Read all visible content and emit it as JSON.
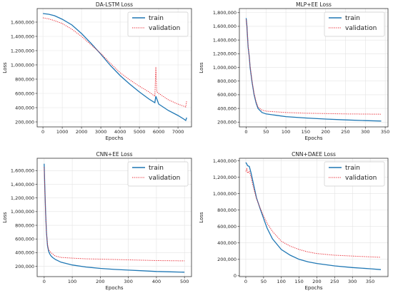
{
  "chart_data": [
    {
      "type": "line",
      "title": "DA-LSTM Loss",
      "xlabel": "Epochs",
      "ylabel": "Loss",
      "xlim": [
        -300,
        7700
      ],
      "ylim": [
        130000,
        1790000
      ],
      "xticks": [
        0,
        1000,
        2000,
        3000,
        4000,
        5000,
        6000,
        7000
      ],
      "xtick_labels": [
        "0",
        "1000",
        "2000",
        "3000",
        "4000",
        "5000",
        "6000",
        "7000"
      ],
      "yticks": [
        200000,
        400000,
        600000,
        800000,
        1000000,
        1200000,
        1400000,
        1600000
      ],
      "ytick_labels": [
        "200,000",
        "400,000",
        "600,000",
        "800,000",
        "1,000,000",
        "1,200,000",
        "1,400,000",
        "1,600,000"
      ],
      "legend": "top-right",
      "grid": true,
      "series": [
        {
          "name": "train",
          "color": "#1f77b4",
          "style": "solid",
          "x": [
            0,
            300,
            600,
            1000,
            1500,
            2000,
            2500,
            3000,
            3500,
            4000,
            4500,
            5000,
            5500,
            5800,
            5850,
            6000,
            6500,
            7000,
            7300,
            7400,
            7450
          ],
          "y": [
            1720000,
            1710000,
            1690000,
            1640000,
            1560000,
            1440000,
            1300000,
            1150000,
            990000,
            850000,
            730000,
            620000,
            520000,
            470000,
            560000,
            450000,
            360000,
            290000,
            240000,
            220000,
            260000
          ]
        },
        {
          "name": "validation",
          "color": "#e8202a",
          "style": "dotted",
          "x": [
            0,
            300,
            600,
            1000,
            1500,
            2000,
            2500,
            3000,
            3500,
            4000,
            4500,
            5000,
            5500,
            5800,
            5850,
            5900,
            6000,
            6500,
            7000,
            7300,
            7400,
            7450
          ],
          "y": [
            1660000,
            1645000,
            1620000,
            1580000,
            1500000,
            1400000,
            1280000,
            1160000,
            1020000,
            890000,
            790000,
            700000,
            620000,
            560000,
            970000,
            620000,
            600000,
            510000,
            450000,
            420000,
            410000,
            500000
          ]
        }
      ]
    },
    {
      "type": "line",
      "title": "MLP+EE Loss",
      "xlabel": "Epochs",
      "ylabel": "Loss",
      "xlim": [
        -17,
        357
      ],
      "ylim": [
        130000,
        1860000
      ],
      "xticks": [
        0,
        50,
        100,
        150,
        200,
        250,
        300,
        350
      ],
      "xtick_labels": [
        "0",
        "50",
        "100",
        "150",
        "200",
        "250",
        "300",
        "350"
      ],
      "yticks": [
        200000,
        400000,
        600000,
        800000,
        1000000,
        1200000,
        1400000,
        1600000,
        1800000
      ],
      "ytick_labels": [
        "200,000",
        "400,000",
        "600,000",
        "800,000",
        "1,000,000",
        "1,200,000",
        "1,400,000",
        "1,600,000",
        "1,800,000"
      ],
      "legend": "top-right",
      "grid": true,
      "series": [
        {
          "name": "train",
          "color": "#1f77b4",
          "style": "solid",
          "x": [
            0,
            2,
            5,
            8,
            10,
            15,
            20,
            25,
            30,
            40,
            50,
            75,
            100,
            150,
            200,
            250,
            300,
            340
          ],
          "y": [
            1720000,
            1600000,
            1300000,
            1150000,
            1000000,
            780000,
            600000,
            480000,
            400000,
            340000,
            320000,
            300000,
            280000,
            260000,
            245000,
            232000,
            222000,
            215000
          ]
        },
        {
          "name": "validation",
          "color": "#e8202a",
          "style": "dotted",
          "x": [
            0,
            2,
            5,
            8,
            10,
            15,
            20,
            25,
            30,
            40,
            50,
            75,
            100,
            150,
            200,
            250,
            300,
            340
          ],
          "y": [
            1700000,
            1600000,
            1320000,
            1150000,
            1020000,
            800000,
            620000,
            500000,
            420000,
            375000,
            360000,
            350000,
            340000,
            330000,
            325000,
            320000,
            318000,
            315000
          ]
        }
      ]
    },
    {
      "type": "line",
      "title": "CNN+EE Loss",
      "xlabel": "Epochs",
      "ylabel": "Loss",
      "xlim": [
        -25,
        525
      ],
      "ylim": [
        50000,
        1780000
      ],
      "xticks": [
        0,
        100,
        200,
        300,
        400,
        500
      ],
      "xtick_labels": [
        "0",
        "100",
        "200",
        "300",
        "400",
        "500"
      ],
      "yticks": [
        200000,
        400000,
        600000,
        800000,
        1000000,
        1200000,
        1400000,
        1600000
      ],
      "ytick_labels": [
        "200,000",
        "400,000",
        "600,000",
        "800,000",
        "1,000,000",
        "1,200,000",
        "1,400,000",
        "1,600,000"
      ],
      "legend": "top-right",
      "grid": true,
      "series": [
        {
          "name": "train",
          "color": "#1f77b4",
          "style": "solid",
          "x": [
            0,
            2,
            5,
            8,
            12,
            16,
            20,
            25,
            30,
            40,
            60,
            100,
            150,
            200,
            250,
            300,
            350,
            400,
            450,
            500
          ],
          "y": [
            1700000,
            1400000,
            1000000,
            700000,
            500000,
            420000,
            380000,
            350000,
            330000,
            300000,
            260000,
            220000,
            190000,
            170000,
            155000,
            145000,
            135000,
            125000,
            120000,
            115000
          ]
        },
        {
          "name": "validation",
          "color": "#e8202a",
          "style": "dotted",
          "x": [
            0,
            2,
            5,
            8,
            12,
            16,
            20,
            25,
            30,
            40,
            60,
            100,
            150,
            200,
            250,
            300,
            350,
            400,
            450,
            500
          ],
          "y": [
            1650000,
            1380000,
            980000,
            700000,
            520000,
            440000,
            420000,
            400000,
            380000,
            350000,
            330000,
            320000,
            310000,
            305000,
            300000,
            295000,
            290000,
            285000,
            282000,
            280000
          ]
        }
      ]
    },
    {
      "type": "line",
      "title": "CNN+DAEE Loss",
      "xlabel": "Epochs",
      "ylabel": "Loss",
      "xlim": [
        -18,
        400
      ],
      "ylim": [
        -10000,
        1430000
      ],
      "xticks": [
        0,
        50,
        100,
        150,
        200,
        250,
        300,
        350
      ],
      "xtick_labels": [
        "0",
        "50",
        "100",
        "150",
        "200",
        "250",
        "300",
        "350"
      ],
      "yticks": [
        0,
        200000,
        400000,
        600000,
        800000,
        1000000,
        1200000,
        1400000
      ],
      "ytick_labels": [
        "0",
        "200,000",
        "400,000",
        "600,000",
        "800,000",
        "1,000,000",
        "1,200,000",
        "1,400,000"
      ],
      "legend": "top-right",
      "grid": true,
      "series": [
        {
          "name": "train",
          "color": "#1f77b4",
          "style": "solid",
          "x": [
            0,
            3,
            5,
            10,
            15,
            20,
            25,
            30,
            40,
            50,
            60,
            75,
            100,
            125,
            150,
            175,
            200,
            250,
            300,
            350,
            380
          ],
          "y": [
            1380000,
            1360000,
            1340000,
            1330000,
            1250000,
            1150000,
            1050000,
            950000,
            820000,
            700000,
            580000,
            450000,
            320000,
            250000,
            200000,
            170000,
            150000,
            120000,
            100000,
            85000,
            75000
          ]
        },
        {
          "name": "validation",
          "color": "#e8202a",
          "style": "dotted",
          "x": [
            0,
            3,
            5,
            10,
            15,
            20,
            25,
            30,
            40,
            50,
            60,
            75,
            100,
            125,
            150,
            175,
            200,
            250,
            300,
            350,
            380
          ],
          "y": [
            1270000,
            1300000,
            1250000,
            1270000,
            1200000,
            1100000,
            1020000,
            940000,
            830000,
            730000,
            640000,
            540000,
            420000,
            360000,
            320000,
            290000,
            270000,
            250000,
            240000,
            230000,
            225000
          ]
        }
      ]
    }
  ]
}
